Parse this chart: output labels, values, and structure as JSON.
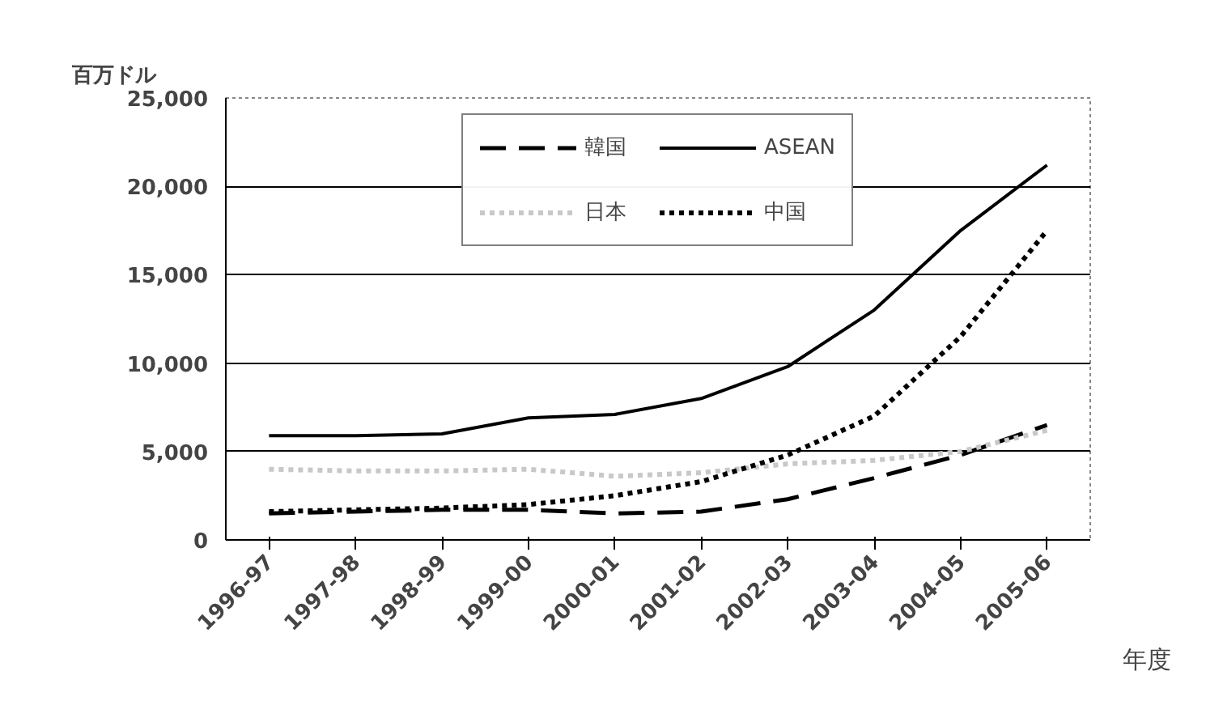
{
  "chart_data": {
    "type": "line",
    "ylabel": "百万ドル",
    "xlabel": "年度",
    "categories": [
      "1996-97",
      "1997-98",
      "1998-99",
      "1999-00",
      "2000-01",
      "2001-02",
      "2002-03",
      "2003-04",
      "2004-05",
      "2005-06"
    ],
    "series": [
      {
        "name": "韓国",
        "color": "#000000",
        "line_style": "dashed",
        "values": [
          1500,
          1600,
          1700,
          1700,
          1500,
          1600,
          2300,
          3500,
          4800,
          6500
        ]
      },
      {
        "name": "ASEAN",
        "color": "#000000",
        "line_style": "solid",
        "values": [
          5900,
          5900,
          6000,
          6900,
          7100,
          8000,
          9800,
          13000,
          17500,
          21200
        ]
      },
      {
        "name": "日本",
        "color": "#c8c8c8",
        "line_style": "dotted",
        "values": [
          4000,
          3900,
          3900,
          4000,
          3600,
          3800,
          4300,
          4500,
          5000,
          6200
        ]
      },
      {
        "name": "中国",
        "color": "#000000",
        "line_style": "dotted",
        "values": [
          1600,
          1700,
          1800,
          2000,
          2500,
          3300,
          4800,
          7000,
          11500,
          17500
        ]
      }
    ],
    "ylim": [
      0,
      25000
    ],
    "yticks": [
      {
        "value": 0,
        "label": "0"
      },
      {
        "value": 5000,
        "label": "5,000"
      },
      {
        "value": 10000,
        "label": "10,000"
      },
      {
        "value": 15000,
        "label": "15,000"
      },
      {
        "value": 20000,
        "label": "20,000"
      },
      {
        "value": 25000,
        "label": "25,000"
      }
    ],
    "grid": "y",
    "legend": "top",
    "marker": "none"
  }
}
